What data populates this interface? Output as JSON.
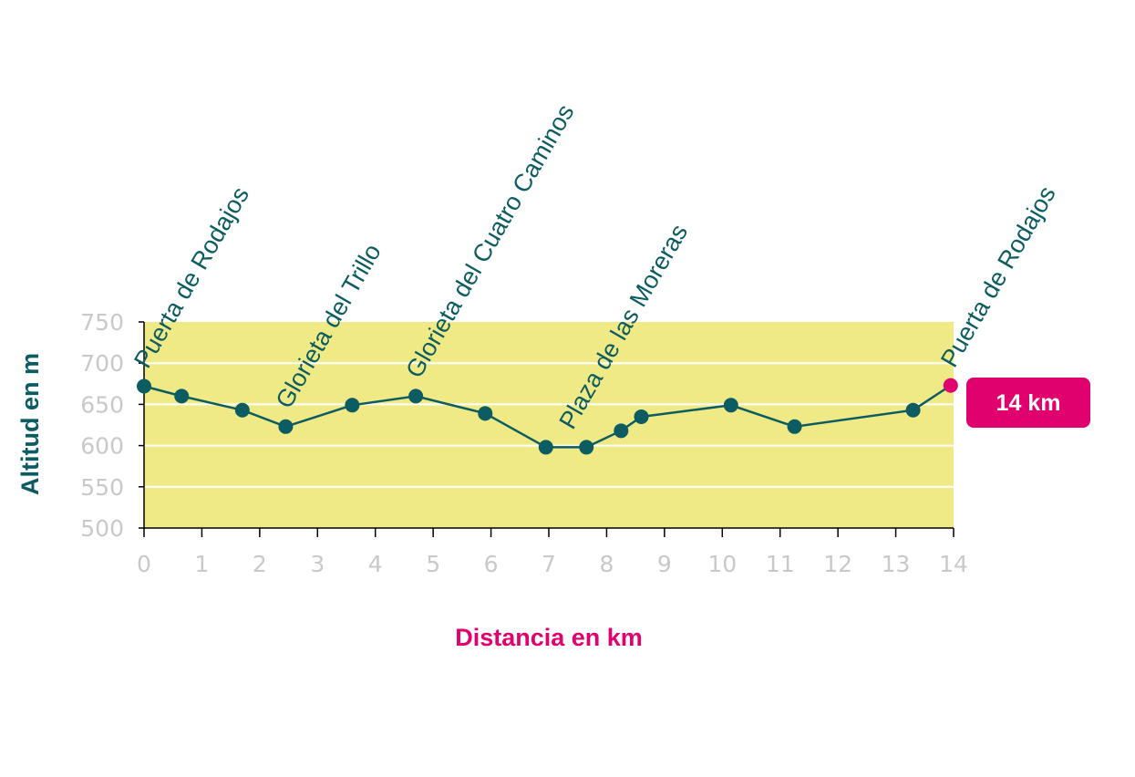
{
  "chart_data": {
    "type": "line",
    "title": "",
    "xlabel": "Distancia en km",
    "ylabel": "Altitud en m",
    "xlim": [
      0,
      14
    ],
    "ylim": [
      500,
      750
    ],
    "x_ticks": [
      "0",
      "1",
      "2",
      "3",
      "4",
      "5",
      "6",
      "7",
      "8",
      "9",
      "10",
      "11",
      "12",
      "13",
      "14"
    ],
    "y_ticks": [
      "500",
      "550",
      "600",
      "650",
      "700",
      "750"
    ],
    "grid": true,
    "series": [
      {
        "points": [
          {
            "x": 0.0,
            "y": 672
          },
          {
            "x": 0.65,
            "y": 660
          },
          {
            "x": 1.7,
            "y": 643
          },
          {
            "x": 2.45,
            "y": 623
          },
          {
            "x": 3.6,
            "y": 649
          },
          {
            "x": 4.7,
            "y": 660
          },
          {
            "x": 5.9,
            "y": 639
          },
          {
            "x": 6.95,
            "y": 598
          },
          {
            "x": 7.65,
            "y": 598
          },
          {
            "x": 8.25,
            "y": 618
          },
          {
            "x": 8.6,
            "y": 635
          },
          {
            "x": 10.15,
            "y": 649
          },
          {
            "x": 11.25,
            "y": 623
          },
          {
            "x": 13.3,
            "y": 643
          },
          {
            "x": 13.95,
            "y": 673
          }
        ]
      }
    ],
    "annotations": [
      {
        "x": 0.0,
        "y": 672,
        "text": "Puerta de Rodajos"
      },
      {
        "x": 2.45,
        "y": 623,
        "text": "Glorieta del Trillo"
      },
      {
        "x": 4.7,
        "y": 660,
        "text": "Glorieta del Cuatro Caminos"
      },
      {
        "x": 7.35,
        "y": 598,
        "text": "Plaza de las Moreras"
      },
      {
        "x": 13.95,
        "y": 673,
        "text": "Puerta de Rodajos"
      }
    ],
    "distance_badge": "14 km",
    "colors": {
      "plot_background": "#f0ea86",
      "line": "#0c5c61",
      "end_marker": "#e0006e",
      "badge": "#e0006e",
      "grid": "#ffffff",
      "tick_text": "#c9c9c9"
    }
  }
}
